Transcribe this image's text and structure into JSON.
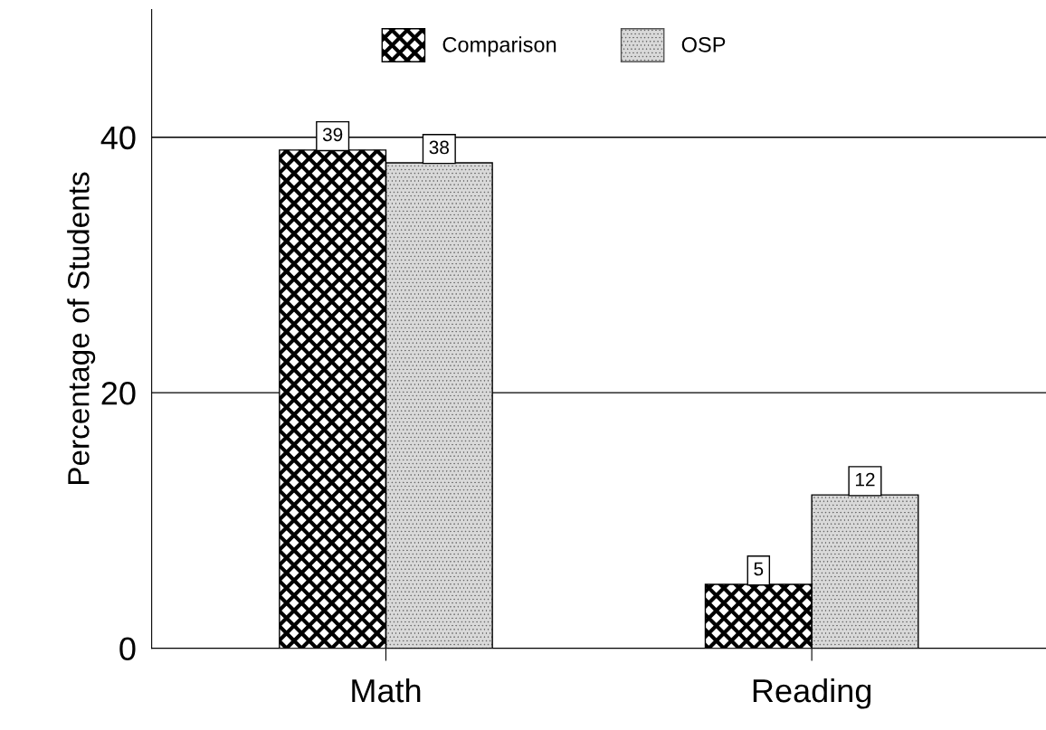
{
  "chart_data": {
    "type": "bar",
    "ylabel": "Percentage of Students",
    "categories": [
      "Math",
      "Reading"
    ],
    "series": [
      {
        "name": "Comparison",
        "color": "#000000",
        "values": [
          39,
          5
        ]
      },
      {
        "name": "OSP",
        "color": "#d9d9d9",
        "values": [
          38,
          12
        ]
      }
    ],
    "ylim": [
      0,
      50
    ],
    "yticks": [
      0,
      20,
      40
    ],
    "grid": "y",
    "legend": "top",
    "data_labels": true
  }
}
